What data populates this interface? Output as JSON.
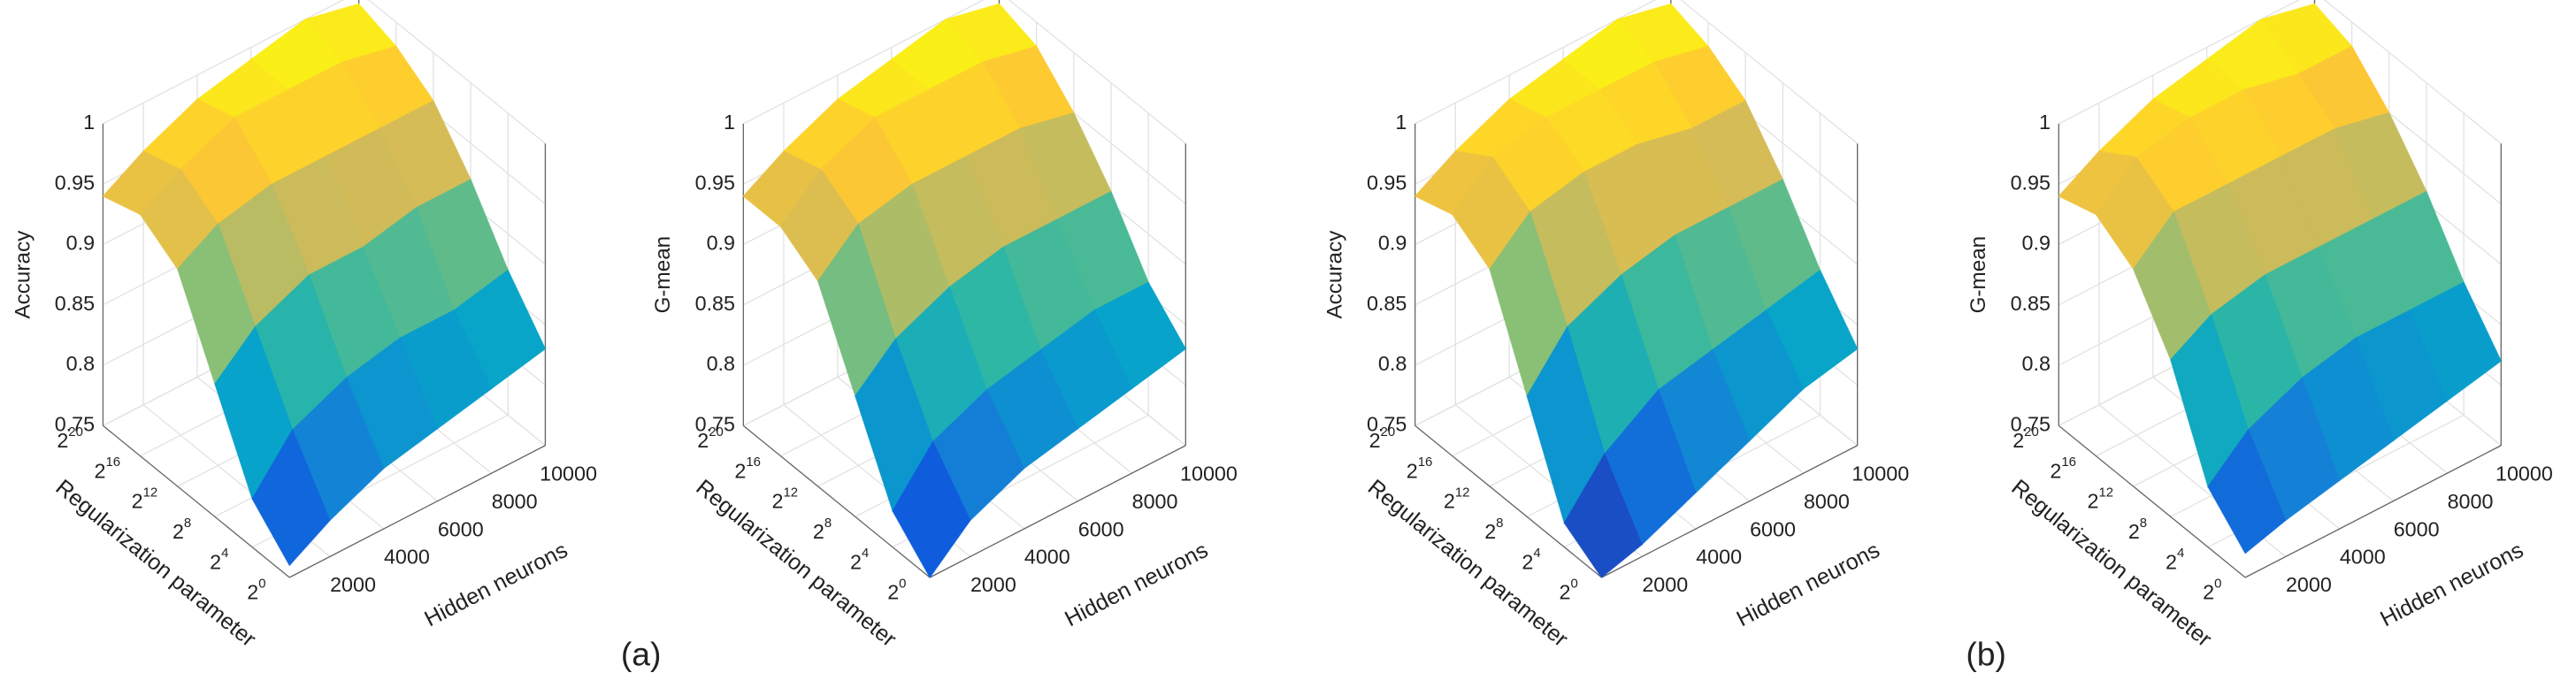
{
  "chart_data": [
    {
      "type": "surface",
      "zlabel": "Accuracy",
      "xlabel": "Hidden neurons",
      "ylabel": "Regularization parameter",
      "x": [
        500,
        2000,
        4000,
        6000,
        8000,
        10000
      ],
      "y": [
        0,
        4,
        8,
        12,
        16,
        20
      ],
      "z": [
        [
          0.76,
          0.78,
          0.8,
          0.81,
          0.82,
          0.83
        ],
        [
          0.79,
          0.83,
          0.85,
          0.86,
          0.86,
          0.87
        ],
        [
          0.86,
          0.89,
          0.91,
          0.91,
          0.92,
          0.92
        ],
        [
          0.93,
          0.95,
          0.96,
          0.96,
          0.96,
          0.96
        ],
        [
          0.95,
          0.97,
          0.99,
          0.99,
          0.99,
          0.98
        ],
        [
          0.94,
          0.96,
          0.98,
          0.99,
          1.0,
          0.99
        ]
      ],
      "xlim": [
        500,
        10000
      ],
      "ylim": [
        0,
        20
      ],
      "zlim": [
        0.75,
        1
      ],
      "xticks": [
        2000,
        4000,
        6000,
        8000,
        10000
      ],
      "yticks": [
        {
          "value": 0,
          "label": "2^0"
        },
        {
          "value": 4,
          "label": "2^4"
        },
        {
          "value": 8,
          "label": "2^8"
        },
        {
          "value": 12,
          "label": "2^12"
        },
        {
          "value": 16,
          "label": "2^16"
        },
        {
          "value": 20,
          "label": "2^20"
        }
      ],
      "zticks": [
        0.75,
        0.8,
        0.85,
        0.9,
        0.95,
        1
      ],
      "colormap": [
        "#352a87",
        "#0f5cdd",
        "#1481d6",
        "#06a4ca",
        "#2eb7a4",
        "#87bf77",
        "#d1bb59",
        "#fec832",
        "#f9fb0e"
      ],
      "grid": true
    },
    {
      "type": "surface",
      "zlabel": "G-mean",
      "xlabel": "Hidden neurons",
      "ylabel": "Regularization parameter",
      "x": [
        500,
        2000,
        4000,
        6000,
        8000,
        10000
      ],
      "y": [
        0,
        4,
        8,
        12,
        16,
        20
      ],
      "z": [
        [
          0.75,
          0.78,
          0.8,
          0.81,
          0.82,
          0.83
        ],
        [
          0.78,
          0.82,
          0.84,
          0.85,
          0.86,
          0.86
        ],
        [
          0.85,
          0.88,
          0.9,
          0.91,
          0.91,
          0.91
        ],
        [
          0.92,
          0.95,
          0.96,
          0.96,
          0.96,
          0.95
        ],
        [
          0.94,
          0.97,
          0.99,
          0.99,
          0.99,
          0.98
        ],
        [
          0.94,
          0.96,
          0.98,
          0.99,
          1.0,
          0.99
        ]
      ],
      "xlim": [
        500,
        10000
      ],
      "ylim": [
        0,
        20
      ],
      "zlim": [
        0.75,
        1
      ],
      "xticks": [
        2000,
        4000,
        6000,
        8000,
        10000
      ],
      "yticks": [
        {
          "value": 0,
          "label": "2^0"
        },
        {
          "value": 4,
          "label": "2^4"
        },
        {
          "value": 8,
          "label": "2^8"
        },
        {
          "value": 12,
          "label": "2^12"
        },
        {
          "value": 16,
          "label": "2^16"
        },
        {
          "value": 20,
          "label": "2^20"
        }
      ],
      "zticks": [
        0.75,
        0.8,
        0.85,
        0.9,
        0.95,
        1
      ],
      "colormap": [
        "#352a87",
        "#0f5cdd",
        "#1481d6",
        "#06a4ca",
        "#2eb7a4",
        "#87bf77",
        "#d1bb59",
        "#fec832",
        "#f9fb0e"
      ],
      "grid": true
    },
    {
      "type": "surface",
      "zlabel": "Accuracy",
      "xlabel": "Hidden neurons",
      "ylabel": "Regularization parameter",
      "x": [
        500,
        2000,
        4000,
        6000,
        8000,
        10000
      ],
      "y": [
        0,
        4,
        8,
        12,
        16,
        20
      ],
      "z": [
        [
          0.75,
          0.76,
          0.78,
          0.8,
          0.82,
          0.83
        ],
        [
          0.77,
          0.81,
          0.84,
          0.85,
          0.86,
          0.87
        ],
        [
          0.85,
          0.89,
          0.91,
          0.92,
          0.92,
          0.92
        ],
        [
          0.93,
          0.96,
          0.97,
          0.97,
          0.96,
          0.96
        ],
        [
          0.95,
          0.98,
          0.99,
          0.99,
          0.99,
          0.98
        ],
        [
          0.94,
          0.96,
          0.98,
          0.99,
          1.0,
          0.99
        ]
      ],
      "xlim": [
        500,
        10000
      ],
      "ylim": [
        0,
        20
      ],
      "zlim": [
        0.75,
        1
      ],
      "xticks": [
        2000,
        4000,
        6000,
        8000,
        10000
      ],
      "yticks": [
        {
          "value": 0,
          "label": "2^0"
        },
        {
          "value": 4,
          "label": "2^4"
        },
        {
          "value": 8,
          "label": "2^8"
        },
        {
          "value": 12,
          "label": "2^12"
        },
        {
          "value": 16,
          "label": "2^16"
        },
        {
          "value": 20,
          "label": "2^20"
        }
      ],
      "zticks": [
        0.75,
        0.8,
        0.85,
        0.9,
        0.95,
        1
      ],
      "colormap": [
        "#352a87",
        "#0f5cdd",
        "#1481d6",
        "#06a4ca",
        "#2eb7a4",
        "#87bf77",
        "#d1bb59",
        "#fec832",
        "#f9fb0e"
      ],
      "grid": true
    },
    {
      "type": "surface",
      "zlabel": "G-mean",
      "xlabel": "Hidden neurons",
      "ylabel": "Regularization parameter",
      "x": [
        500,
        2000,
        4000,
        6000,
        8000,
        10000
      ],
      "y": [
        0,
        4,
        8,
        12,
        16,
        20
      ],
      "z": [
        [
          0.77,
          0.78,
          0.79,
          0.8,
          0.81,
          0.82
        ],
        [
          0.8,
          0.83,
          0.85,
          0.86,
          0.86,
          0.86
        ],
        [
          0.88,
          0.9,
          0.91,
          0.91,
          0.91,
          0.91
        ],
        [
          0.93,
          0.96,
          0.96,
          0.96,
          0.96,
          0.95
        ],
        [
          0.95,
          0.98,
          0.99,
          0.99,
          0.98,
          0.98
        ],
        [
          0.94,
          0.96,
          0.98,
          0.99,
          1.0,
          0.99
        ]
      ],
      "xlim": [
        500,
        10000
      ],
      "ylim": [
        0,
        20
      ],
      "zlim": [
        0.75,
        1
      ],
      "xticks": [
        2000,
        4000,
        6000,
        8000,
        10000
      ],
      "yticks": [
        {
          "value": 0,
          "label": "2^0"
        },
        {
          "value": 4,
          "label": "2^4"
        },
        {
          "value": 8,
          "label": "2^8"
        },
        {
          "value": 12,
          "label": "2^12"
        },
        {
          "value": 16,
          "label": "2^16"
        },
        {
          "value": 20,
          "label": "2^20"
        }
      ],
      "zticks": [
        0.75,
        0.8,
        0.85,
        0.9,
        0.95,
        1
      ],
      "colormap": [
        "#352a87",
        "#0f5cdd",
        "#1481d6",
        "#06a4ca",
        "#2eb7a4",
        "#87bf77",
        "#d1bb59",
        "#fec832",
        "#f9fb0e"
      ],
      "grid": true
    }
  ],
  "panel_labels": [
    "(a)",
    "(b)"
  ]
}
